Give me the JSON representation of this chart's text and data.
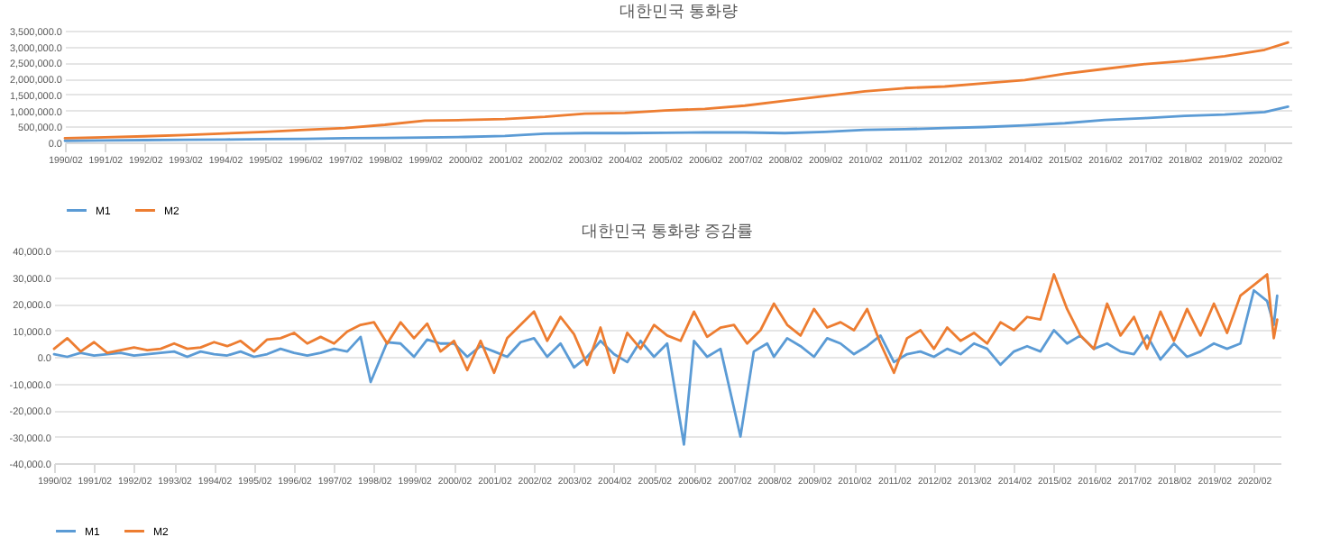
{
  "chart_data": [
    {
      "type": "line",
      "title": "대한민국 통화량",
      "grid": "y",
      "legend": "bottom",
      "xlim": [
        "1990-02",
        "2020-10"
      ],
      "xticks": [
        {
          "value": "1990-02",
          "label": "1990/02"
        },
        {
          "value": "1991-02",
          "label": "1991/02"
        },
        {
          "value": "1992-02",
          "label": "1992/02"
        },
        {
          "value": "1993-02",
          "label": "1993/02"
        },
        {
          "value": "1994-02",
          "label": "1994/02"
        },
        {
          "value": "1995-02",
          "label": "1995/02"
        },
        {
          "value": "1996-02",
          "label": "1996/02"
        },
        {
          "value": "1997-02",
          "label": "1997/02"
        },
        {
          "value": "1998-02",
          "label": "1998/02"
        },
        {
          "value": "1999-02",
          "label": "1999/02"
        },
        {
          "value": "2000-02",
          "label": "2000/02"
        },
        {
          "value": "2001-02",
          "label": "2001/02"
        },
        {
          "value": "2002-02",
          "label": "2002/02"
        },
        {
          "value": "2003-02",
          "label": "2003/02"
        },
        {
          "value": "2004-02",
          "label": "2004/02"
        },
        {
          "value": "2005-02",
          "label": "2005/02"
        },
        {
          "value": "2006-02",
          "label": "2006/02"
        },
        {
          "value": "2007-02",
          "label": "2007/02"
        },
        {
          "value": "2008-02",
          "label": "2008/02"
        },
        {
          "value": "2009-02",
          "label": "2009/02"
        },
        {
          "value": "2010-02",
          "label": "2010/02"
        },
        {
          "value": "2011-02",
          "label": "2011/02"
        },
        {
          "value": "2012-02",
          "label": "2012/02"
        },
        {
          "value": "2013-02",
          "label": "2013/02"
        },
        {
          "value": "2014-02",
          "label": "2014/02"
        },
        {
          "value": "2015-02",
          "label": "2015/02"
        },
        {
          "value": "2016-02",
          "label": "2016/02"
        },
        {
          "value": "2017-02",
          "label": "2017/02"
        },
        {
          "value": "2018-02",
          "label": "2018/02"
        },
        {
          "value": "2019-02",
          "label": "2019/02"
        },
        {
          "value": "2020-02",
          "label": "2020/02"
        }
      ],
      "ylim": [
        0,
        3500000
      ],
      "yticks": [
        {
          "value": 0,
          "label": "0.0"
        },
        {
          "value": 500000,
          "label": "500,000.0"
        },
        {
          "value": 1000000,
          "label": "1,000,000.0"
        },
        {
          "value": 1500000,
          "label": "1,500,000.0"
        },
        {
          "value": 2000000,
          "label": "2,000,000.0"
        },
        {
          "value": 2500000,
          "label": "2,500,000.0"
        },
        {
          "value": 3000000,
          "label": "3,000,000.0"
        },
        {
          "value": 3500000,
          "label": "3,500,000.0"
        }
      ],
      "x": [
        "1990-02",
        "1991-02",
        "1992-02",
        "1993-02",
        "1994-02",
        "1995-02",
        "1996-02",
        "1997-02",
        "1998-02",
        "1999-02",
        "2000-02",
        "2001-02",
        "2002-02",
        "2003-02",
        "2004-02",
        "2005-02",
        "2006-02",
        "2007-02",
        "2008-02",
        "2009-02",
        "2010-02",
        "2011-02",
        "2012-02",
        "2013-02",
        "2014-02",
        "2015-02",
        "2016-02",
        "2017-02",
        "2018-02",
        "2019-02",
        "2020-02",
        "2020-09"
      ],
      "series": [
        {
          "name": "M1",
          "color": "#5b9bd5",
          "values": [
            50000,
            60000,
            70000,
            80000,
            90000,
            100000,
            110000,
            130000,
            140000,
            150000,
            170000,
            200000,
            270000,
            290000,
            290000,
            300000,
            310000,
            310000,
            290000,
            330000,
            390000,
            410000,
            450000,
            480000,
            530000,
            600000,
            700000,
            760000,
            830000,
            870000,
            950000,
            1120000
          ]
        },
        {
          "name": "M2",
          "color": "#ed7d31",
          "values": [
            130000,
            160000,
            190000,
            230000,
            280000,
            330000,
            390000,
            450000,
            550000,
            680000,
            700000,
            730000,
            800000,
            900000,
            920000,
            1000000,
            1050000,
            1150000,
            1300000,
            1450000,
            1600000,
            1700000,
            1750000,
            1850000,
            1950000,
            2150000,
            2300000,
            2450000,
            2550000,
            2700000,
            2900000,
            3130000
          ]
        }
      ]
    },
    {
      "type": "line",
      "title": "대한민국 통화량 증감률",
      "grid": "y",
      "legend": "bottom",
      "xlim": [
        "1990-02",
        "2020-10"
      ],
      "xticks": [
        {
          "value": "1990-02",
          "label": "1990/02"
        },
        {
          "value": "1991-02",
          "label": "1991/02"
        },
        {
          "value": "1992-02",
          "label": "1992/02"
        },
        {
          "value": "1993-02",
          "label": "1993/02"
        },
        {
          "value": "1994-02",
          "label": "1994/02"
        },
        {
          "value": "1995-02",
          "label": "1995/02"
        },
        {
          "value": "1996-02",
          "label": "1996/02"
        },
        {
          "value": "1997-02",
          "label": "1997/02"
        },
        {
          "value": "1998-02",
          "label": "1998/02"
        },
        {
          "value": "1999-02",
          "label": "1999/02"
        },
        {
          "value": "2000-02",
          "label": "2000/02"
        },
        {
          "value": "2001-02",
          "label": "2001/02"
        },
        {
          "value": "2002-02",
          "label": "2002/02"
        },
        {
          "value": "2003-02",
          "label": "2003/02"
        },
        {
          "value": "2004-02",
          "label": "2004/02"
        },
        {
          "value": "2005-02",
          "label": "2005/02"
        },
        {
          "value": "2006-02",
          "label": "2006/02"
        },
        {
          "value": "2007-02",
          "label": "2007/02"
        },
        {
          "value": "2008-02",
          "label": "2008/02"
        },
        {
          "value": "2009-02",
          "label": "2009/02"
        },
        {
          "value": "2010-02",
          "label": "2010/02"
        },
        {
          "value": "2011-02",
          "label": "2011/02"
        },
        {
          "value": "2012-02",
          "label": "2012/02"
        },
        {
          "value": "2013-02",
          "label": "2013/02"
        },
        {
          "value": "2014-02",
          "label": "2014/02"
        },
        {
          "value": "2015-02",
          "label": "2015/02"
        },
        {
          "value": "2016-02",
          "label": "2016/02"
        },
        {
          "value": "2017-02",
          "label": "2017/02"
        },
        {
          "value": "2018-02",
          "label": "2018/02"
        },
        {
          "value": "2019-02",
          "label": "2019/02"
        },
        {
          "value": "2020-02",
          "label": "2020/02"
        }
      ],
      "ylim": [
        -40000,
        40000
      ],
      "yticks": [
        {
          "value": -40000,
          "label": "-40,000.0"
        },
        {
          "value": -30000,
          "label": "-30,000.0"
        },
        {
          "value": -20000,
          "label": "-20,000.0"
        },
        {
          "value": -10000,
          "label": "-10,000.0"
        },
        {
          "value": 0,
          "label": "0.0"
        },
        {
          "value": 10000,
          "label": "10,000.0"
        },
        {
          "value": 20000,
          "label": "20,000.0"
        },
        {
          "value": 30000,
          "label": "30,000.0"
        },
        {
          "value": 40000,
          "label": "40,000.0"
        }
      ],
      "series": [
        {
          "name": "M1",
          "color": "#5b9bd5",
          "x": [
            "1990-02",
            "1990-06",
            "1990-10",
            "1991-02",
            "1991-06",
            "1991-10",
            "1992-02",
            "1992-06",
            "1992-10",
            "1993-02",
            "1993-06",
            "1993-10",
            "1994-02",
            "1994-06",
            "1994-10",
            "1995-02",
            "1995-06",
            "1995-10",
            "1996-02",
            "1996-06",
            "1996-10",
            "1997-02",
            "1997-06",
            "1997-10",
            "1998-01",
            "1998-06",
            "1998-10",
            "1999-02",
            "1999-06",
            "1999-10",
            "2000-02",
            "2000-06",
            "2000-10",
            "2001-02",
            "2001-06",
            "2001-10",
            "2002-02",
            "2002-06",
            "2002-10",
            "2003-02",
            "2003-06",
            "2003-10",
            "2004-02",
            "2004-06",
            "2004-10",
            "2005-02",
            "2005-06",
            "2005-11",
            "2006-02",
            "2006-06",
            "2006-10",
            "2007-04",
            "2007-08",
            "2007-12",
            "2008-02",
            "2008-06",
            "2008-10",
            "2009-02",
            "2009-06",
            "2009-10",
            "2010-02",
            "2010-06",
            "2010-10",
            "2011-02",
            "2011-06",
            "2011-10",
            "2012-02",
            "2012-06",
            "2012-10",
            "2013-02",
            "2013-06",
            "2013-10",
            "2014-02",
            "2014-06",
            "2014-10",
            "2015-02",
            "2015-06",
            "2015-10",
            "2016-02",
            "2016-06",
            "2016-10",
            "2017-02",
            "2017-06",
            "2017-10",
            "2018-02",
            "2018-06",
            "2018-10",
            "2019-02",
            "2019-06",
            "2019-10",
            "2020-02",
            "2020-06",
            "2020-08",
            "2020-09"
          ],
          "values": [
            1000,
            0,
            1500,
            500,
            1000,
            1500,
            500,
            1000,
            1500,
            2000,
            0,
            2000,
            1000,
            500,
            2000,
            0,
            1000,
            3000,
            1500,
            500,
            1500,
            3000,
            2000,
            7500,
            -9500,
            5500,
            5000,
            0,
            6500,
            5000,
            5000,
            0,
            4000,
            2000,
            0,
            5500,
            7000,
            0,
            5000,
            -4000,
            0,
            6000,
            1000,
            -2000,
            6000,
            0,
            5000,
            -33000,
            6000,
            0,
            3000,
            -30000,
            2000,
            5000,
            0,
            7000,
            4000,
            0,
            7000,
            5000,
            1000,
            4000,
            8000,
            -2000,
            1000,
            2000,
            0,
            3000,
            1000,
            5000,
            3000,
            -3000,
            2000,
            4000,
            2000,
            10000,
            5000,
            8000,
            3000,
            5000,
            2000,
            1000,
            8000,
            -1000,
            5000,
            0,
            2000,
            5000,
            3000,
            5000,
            25000,
            21000,
            12000,
            23000
          ]
        },
        {
          "name": "M2",
          "color": "#ed7d31",
          "x": [
            "1990-02",
            "1990-06",
            "1990-10",
            "1991-02",
            "1991-06",
            "1991-10",
            "1992-02",
            "1992-06",
            "1992-10",
            "1993-02",
            "1993-06",
            "1993-10",
            "1994-02",
            "1994-06",
            "1994-10",
            "1995-02",
            "1995-06",
            "1995-10",
            "1996-02",
            "1996-06",
            "1996-10",
            "1997-02",
            "1997-06",
            "1997-10",
            "1998-02",
            "1998-06",
            "1998-10",
            "1999-02",
            "1999-06",
            "1999-10",
            "2000-02",
            "2000-06",
            "2000-10",
            "2001-02",
            "2001-06",
            "2001-10",
            "2002-02",
            "2002-06",
            "2002-10",
            "2003-02",
            "2003-06",
            "2003-10",
            "2004-02",
            "2004-06",
            "2004-10",
            "2005-02",
            "2005-06",
            "2005-10",
            "2006-02",
            "2006-06",
            "2006-10",
            "2007-02",
            "2007-06",
            "2007-10",
            "2008-02",
            "2008-06",
            "2008-10",
            "2009-02",
            "2009-06",
            "2009-10",
            "2010-02",
            "2010-06",
            "2010-10",
            "2011-02",
            "2011-06",
            "2011-10",
            "2012-02",
            "2012-06",
            "2012-10",
            "2013-02",
            "2013-06",
            "2013-10",
            "2014-02",
            "2014-06",
            "2014-10",
            "2015-02",
            "2015-06",
            "2015-10",
            "2016-02",
            "2016-06",
            "2016-10",
            "2017-02",
            "2017-06",
            "2017-10",
            "2018-02",
            "2018-06",
            "2018-10",
            "2019-02",
            "2019-06",
            "2019-10",
            "2020-02",
            "2020-06",
            "2020-08",
            "2020-09"
          ],
          "values": [
            3000,
            7000,
            2000,
            5500,
            1500,
            2500,
            3500,
            2500,
            3000,
            5000,
            3000,
            3500,
            5500,
            4000,
            6000,
            2000,
            6500,
            7000,
            9000,
            5000,
            7500,
            5000,
            9500,
            12000,
            13000,
            5000,
            13000,
            7000,
            12500,
            2000,
            6000,
            -5000,
            6000,
            -6000,
            7000,
            12000,
            17000,
            6000,
            15000,
            8500,
            -3000,
            11000,
            -6000,
            9000,
            3000,
            12000,
            8000,
            6000,
            17000,
            7500,
            11000,
            12000,
            5000,
            10000,
            20000,
            12000,
            8000,
            18000,
            11000,
            13000,
            10000,
            18000,
            5000,
            -6000,
            7000,
            10000,
            3000,
            11000,
            6000,
            9000,
            5000,
            13000,
            10000,
            15000,
            14000,
            31000,
            18000,
            8000,
            3000,
            20000,
            8000,
            15000,
            3000,
            17000,
            6000,
            18000,
            8000,
            20000,
            9000,
            23000,
            27000,
            31000,
            7000,
            14000
          ]
        }
      ]
    }
  ]
}
